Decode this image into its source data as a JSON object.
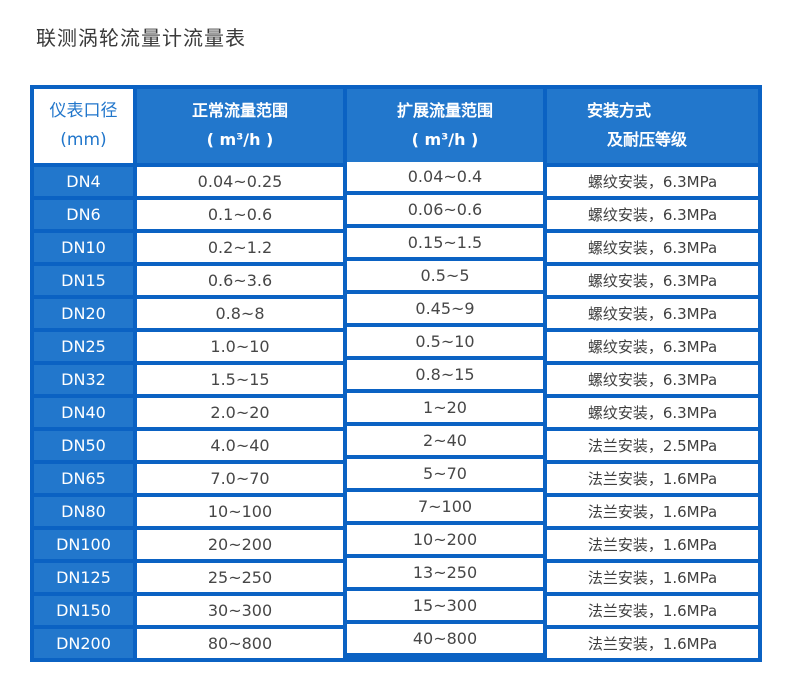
{
  "title": "联测涡轮流量计流量表",
  "colors": {
    "table_fill_blue": "#2277cc",
    "table_border_blue": "#0b62c3",
    "header_text_white": "#ffffff",
    "size_header_text_blue": "#2176cb",
    "value_text_gray": "#474747",
    "title_text": "#3a3a3a"
  },
  "table": {
    "headers": {
      "size_line1": "仪表口径",
      "size_line2": "(mm)",
      "normal_line1": "正常流量范围",
      "normal_line2": "( m³/h )",
      "extended_line1": "扩展流量范围",
      "extended_line2": "( m³/h )",
      "install_line1": "安装方式",
      "install_line2": "及耐压等级"
    },
    "rows": [
      {
        "size": "DN4",
        "normal": "0.04~0.25",
        "extended": "0.04~0.4",
        "install": "螺纹安装，6.3MPa"
      },
      {
        "size": "DN6",
        "normal": "0.1~0.6",
        "extended": "0.06~0.6",
        "install": "螺纹安装，6.3MPa"
      },
      {
        "size": "DN10",
        "normal": "0.2~1.2",
        "extended": "0.15~1.5",
        "install": "螺纹安装，6.3MPa"
      },
      {
        "size": "DN15",
        "normal": "0.6~3.6",
        "extended": "0.5~5",
        "install": "螺纹安装，6.3MPa"
      },
      {
        "size": "DN20",
        "normal": "0.8~8",
        "extended": "0.45~9",
        "install": "螺纹安装，6.3MPa"
      },
      {
        "size": "DN25",
        "normal": "1.0~10",
        "extended": "0.5~10",
        "install": "螺纹安装，6.3MPa"
      },
      {
        "size": "DN32",
        "normal": "1.5~15",
        "extended": "0.8~15",
        "install": "螺纹安装，6.3MPa"
      },
      {
        "size": "DN40",
        "normal": "2.0~20",
        "extended": "1~20",
        "install": "螺纹安装，6.3MPa"
      },
      {
        "size": "DN50",
        "normal": "4.0~40",
        "extended": "2~40",
        "install": "法兰安装，2.5MPa"
      },
      {
        "size": "DN65",
        "normal": "7.0~70",
        "extended": "5~70",
        "install": "法兰安装，1.6MPa"
      },
      {
        "size": "DN80",
        "normal": "10~100",
        "extended": "7~100",
        "install": "法兰安装，1.6MPa"
      },
      {
        "size": "DN100",
        "normal": "20~200",
        "extended": "10~200",
        "install": "法兰安装，1.6MPa"
      },
      {
        "size": "DN125",
        "normal": "25~250",
        "extended": "13~250",
        "install": "法兰安装，1.6MPa"
      },
      {
        "size": "DN150",
        "normal": "30~300",
        "extended": "15~300",
        "install": "法兰安装，1.6MPa"
      },
      {
        "size": "DN200",
        "normal": "80~800",
        "extended": "40~800",
        "install": "法兰安装，1.6MPa"
      }
    ]
  }
}
